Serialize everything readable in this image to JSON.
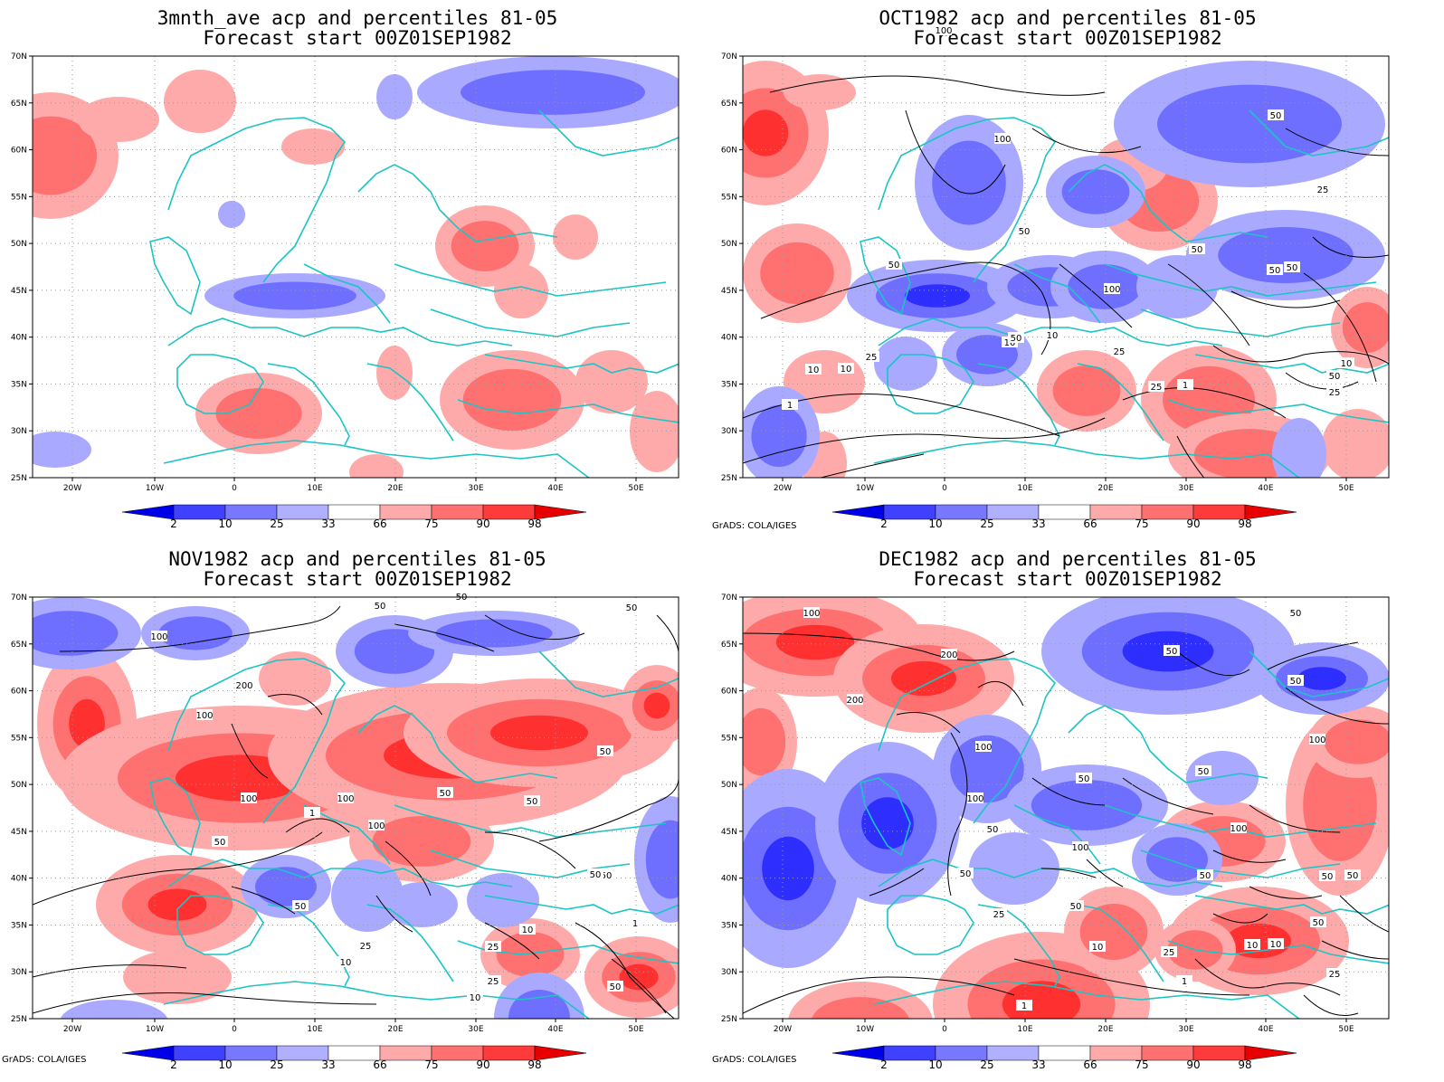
{
  "panels": [
    {
      "id": "p0",
      "title": "3mnth_ave acp and percentiles 81-05",
      "subtitle": "Forecast start 00Z01SEP1982",
      "credit": "",
      "contours": []
    },
    {
      "id": "p1",
      "title": "OCT1982 acp and percentiles 81-05",
      "subtitle": "Forecast start 00Z01SEP1982",
      "credit": "GrADS: COLA/IGES",
      "contours": [
        "100",
        "100",
        "50",
        "25",
        "50",
        "50",
        "50",
        "50",
        "100",
        "50",
        "25",
        "10",
        "10",
        "25",
        "10",
        "1",
        "25",
        "10",
        "1",
        "50",
        "10",
        "50",
        "25"
      ]
    },
    {
      "id": "p2",
      "title": "NOV1982 acp and percentiles 81-05",
      "subtitle": "Forecast start 00Z01SEP1982",
      "credit": "GrADS: COLA/IGES",
      "contours": [
        "50",
        "50",
        "50",
        "100",
        "200",
        "100",
        "100",
        "100",
        "50",
        "50",
        "50",
        "50",
        "100",
        "50",
        "10",
        "25",
        "10",
        "10",
        "25",
        "1",
        "1",
        "50",
        "25",
        "50",
        "50"
      ]
    },
    {
      "id": "p3",
      "title": "DEC1982 acp and percentiles 81-05",
      "subtitle": "Forecast start 00Z01SEP1982",
      "credit": "GrADS: COLA/IGES",
      "contours": [
        "100",
        "200",
        "200",
        "50",
        "50",
        "50",
        "100",
        "100",
        "50",
        "50",
        "100",
        "50",
        "100",
        "100",
        "50",
        "50",
        "25",
        "10",
        "1",
        "1",
        "10",
        "10",
        "25",
        "50",
        "50",
        "50",
        "50",
        "25"
      ]
    }
  ],
  "axes": {
    "lat_labels": [
      "70N",
      "65N",
      "60N",
      "55N",
      "50N",
      "45N",
      "40N",
      "35N",
      "30N",
      "25N"
    ],
    "lon_labels": [
      "20W",
      "10W",
      "0",
      "10E",
      "20E",
      "30E",
      "40E",
      "50E"
    ]
  },
  "colorbar": {
    "labels": [
      "2",
      "10",
      "25",
      "33",
      "66",
      "75",
      "90",
      "98"
    ],
    "colors": [
      "#0000e8",
      "#4040ff",
      "#7878ff",
      "#b0b0ff",
      "#ffffff",
      "#ffaaaa",
      "#ff7070",
      "#ff3a3a",
      "#e80000"
    ]
  },
  "colors": {
    "coast": "#1cc4c4",
    "red_light": "#ffaaaa",
    "red_mid": "#ff7070",
    "red_dark": "#ff3030",
    "blue_light": "#a9a9ff",
    "blue_mid": "#6f6fff",
    "blue_dark": "#2e2eff",
    "contour": "#000000"
  }
}
